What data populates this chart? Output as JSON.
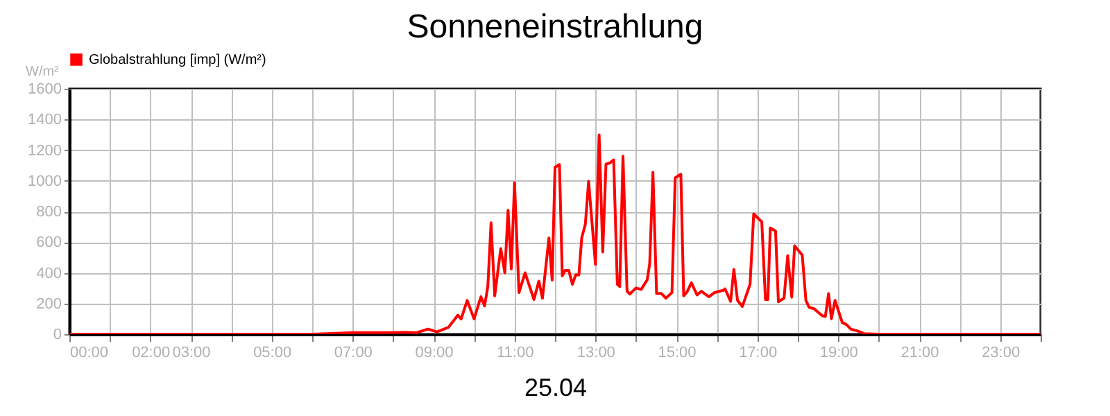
{
  "chart_data": {
    "type": "line",
    "title": "Sonneneinstrahlung",
    "xlabel": "25.04",
    "ylabel": "W/m²",
    "x": [
      0,
      6,
      6.5,
      7,
      8,
      8.3,
      8.57,
      8.86,
      9.08,
      9.37,
      9.6,
      9.68,
      9.83,
      10.0,
      10.17,
      10.26,
      10.34,
      10.42,
      10.51,
      10.66,
      10.76,
      10.84,
      10.92,
      11.0,
      11.11,
      11.26,
      11.48,
      11.6,
      11.69,
      11.85,
      11.93,
      12.0,
      12.11,
      12.18,
      12.25,
      12.34,
      12.43,
      12.51,
      12.59,
      12.66,
      12.75,
      12.83,
      13.0,
      13.09,
      13.18,
      13.26,
      13.35,
      13.45,
      13.54,
      13.6,
      13.68,
      13.78,
      13.85,
      14.0,
      14.13,
      14.28,
      14.34,
      14.42,
      14.51,
      14.63,
      14.74,
      14.89,
      14.97,
      15.11,
      15.18,
      15.26,
      15.37,
      15.51,
      15.62,
      15.8,
      15.94,
      16.17,
      16.2,
      16.34,
      16.42,
      16.51,
      16.63,
      16.82,
      16.91,
      17.11,
      17.2,
      17.26,
      17.32,
      17.45,
      17.52,
      17.66,
      17.75,
      17.85,
      17.92,
      18.11,
      18.2,
      18.28,
      18.4,
      18.6,
      18.68,
      18.76,
      18.83,
      18.92,
      19.1,
      19.2,
      19.31,
      19.48,
      19.65,
      20.0,
      24
    ],
    "series": [
      {
        "name": "Globalstrahlung [imp] (W/m²)",
        "color": "#ff0000",
        "values": [
          0,
          0,
          5,
          10,
          10,
          12,
          9,
          33,
          15,
          45,
          124,
          99,
          220,
          100,
          244,
          184,
          310,
          726,
          250,
          558,
          400,
          808,
          425,
          988,
          271,
          400,
          226,
          346,
          235,
          627,
          353,
          1088,
          1106,
          380,
          416,
          416,
          325,
          386,
          386,
          627,
          717,
          997,
          455,
          1299,
          536,
          1109,
          1115,
          1136,
          325,
          310,
          1160,
          280,
          262,
          301,
          292,
          355,
          461,
          1055,
          265,
          265,
          235,
          271,
          1019,
          1043,
          250,
          274,
          335,
          256,
          280,
          244,
          271,
          287,
          296,
          214,
          422,
          220,
          181,
          325,
          784,
          732,
          226,
          226,
          693,
          672,
          211,
          235,
          512,
          241,
          576,
          515,
          220,
          175,
          166,
          121,
          115,
          265,
          100,
          220,
          75,
          63,
          33,
          21,
          3,
          0,
          0
        ]
      }
    ],
    "xlim": [
      0,
      24
    ],
    "xticks": [
      {
        "value": 0,
        "label": "00:00"
      },
      {
        "value": 1,
        "label": null
      },
      {
        "value": 2,
        "label": "02:00"
      },
      {
        "value": 3,
        "label": "03:00"
      },
      {
        "value": 4,
        "label": null
      },
      {
        "value": 5,
        "label": "05:00"
      },
      {
        "value": 6,
        "label": null
      },
      {
        "value": 7,
        "label": "07:00"
      },
      {
        "value": 8,
        "label": null
      },
      {
        "value": 9,
        "label": "09:00"
      },
      {
        "value": 10,
        "label": null
      },
      {
        "value": 11,
        "label": "11:00"
      },
      {
        "value": 12,
        "label": null
      },
      {
        "value": 13,
        "label": "13:00"
      },
      {
        "value": 14,
        "label": null
      },
      {
        "value": 15,
        "label": "15:00"
      },
      {
        "value": 16,
        "label": null
      },
      {
        "value": 17,
        "label": "17:00"
      },
      {
        "value": 18,
        "label": null
      },
      {
        "value": 19,
        "label": "19:00"
      },
      {
        "value": 20,
        "label": null
      },
      {
        "value": 21,
        "label": "21:00"
      },
      {
        "value": 22,
        "label": null
      },
      {
        "value": 23,
        "label": "23:00"
      },
      {
        "value": 24,
        "label": null
      }
    ],
    "ylim": [
      0,
      1600
    ],
    "yticks": [
      0,
      200,
      400,
      600,
      800,
      1000,
      1200,
      1400,
      1600
    ],
    "grid": true,
    "legend": "top left",
    "marker": "none",
    "line_style": "solid"
  }
}
